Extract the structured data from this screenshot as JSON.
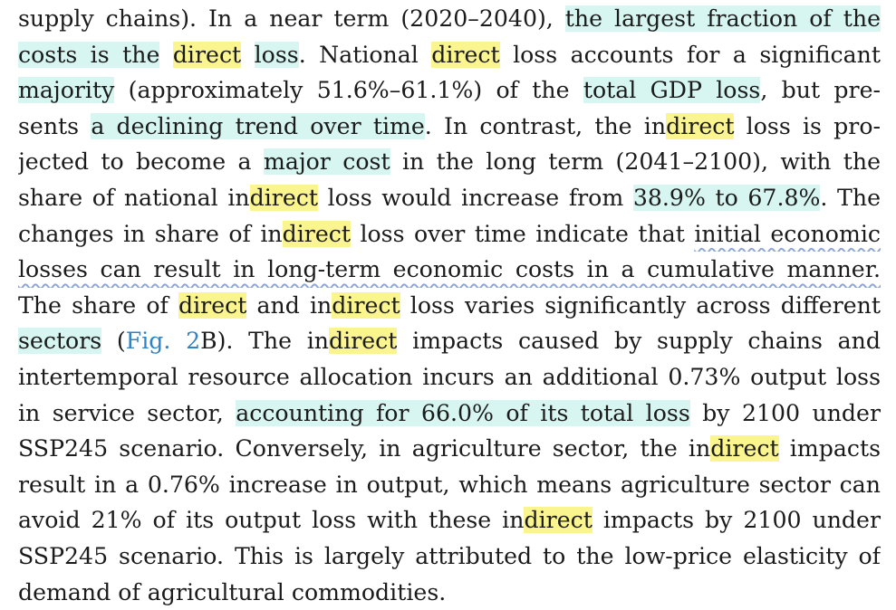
{
  "document": {
    "lines": [
      [
        {
          "t": "supply chains). In a near term (2020–2040), "
        },
        {
          "t": "the largest fraction of the",
          "hl": "cyan"
        }
      ],
      [
        {
          "t": "costs is the",
          "hl": "cyan"
        },
        {
          "t": " "
        },
        {
          "t": "direct",
          "hl": "yellow"
        },
        {
          "t": " "
        },
        {
          "t": "loss",
          "hl": "cyan"
        },
        {
          "t": ". National "
        },
        {
          "t": "direct",
          "hl": "yellow"
        },
        {
          "t": " loss accounts for a significant"
        }
      ],
      [
        {
          "t": "majority",
          "hl": "cyan"
        },
        {
          "t": " (approximately 51.6%–61.1%) of the "
        },
        {
          "t": "total GDP loss",
          "hl": "cyan"
        },
        {
          "t": ", but pre-"
        }
      ],
      [
        {
          "t": "sents "
        },
        {
          "t": "a declining trend over time",
          "hl": "cyan"
        },
        {
          "t": ". In contrast, the in"
        },
        {
          "t": "direct",
          "hl": "yellow"
        },
        {
          "t": " loss is pro-"
        }
      ],
      [
        {
          "t": "jected to become a "
        },
        {
          "t": "major cost",
          "hl": "cyan"
        },
        {
          "t": " in the long term (2041–2100), with the"
        }
      ],
      [
        {
          "t": "share of national in"
        },
        {
          "t": "direct",
          "hl": "yellow"
        },
        {
          "t": " loss would increase from "
        },
        {
          "t": "38.9% to 67.8%",
          "hl": "cyan"
        },
        {
          "t": ". The"
        }
      ],
      [
        {
          "t": "changes in share of in"
        },
        {
          "t": "direct",
          "hl": "yellow"
        },
        {
          "t": " loss over time indicate that "
        },
        {
          "t": "initial economic",
          "sq": true
        }
      ],
      [
        {
          "t": "losses can result in long-term economic costs in a cumulative manner.",
          "sq": true
        }
      ],
      [
        {
          "t": "The share of "
        },
        {
          "t": "direct",
          "hl": "yellow"
        },
        {
          "t": " and in"
        },
        {
          "t": "direct",
          "hl": "yellow"
        },
        {
          "t": " loss varies significantly across different"
        }
      ],
      [
        {
          "t": "sectors",
          "hl": "cyan"
        },
        {
          "t": " ("
        },
        {
          "t": "Fig. 2",
          "link": true
        },
        {
          "t": "B). The in"
        },
        {
          "t": "direct",
          "hl": "yellow"
        },
        {
          "t": " impacts caused by supply chains and"
        }
      ],
      [
        {
          "t": "intertemporal resource allocation incurs an additional 0.73% output loss"
        }
      ],
      [
        {
          "t": "in service sector, "
        },
        {
          "t": "accounting for 66.0% of its total loss",
          "hl": "cyan"
        },
        {
          "t": " by 2100 under"
        }
      ],
      [
        {
          "t": "SSP245 scenario. Conversely, in agriculture sector, the in"
        },
        {
          "t": "direct",
          "hl": "yellow"
        },
        {
          "t": " impacts"
        }
      ],
      [
        {
          "t": "result in a 0.76% increase in output, which means agriculture sector can"
        }
      ],
      [
        {
          "t": "avoid 21% of its output loss with these in"
        },
        {
          "t": "direct",
          "hl": "yellow"
        },
        {
          "t": " impacts by 2100 under"
        }
      ],
      [
        {
          "t": "SSP245 scenario. This is largely attributed to the low-price elasticity of"
        }
      ],
      [
        {
          "t": "demand of agricultural commodities."
        }
      ]
    ]
  },
  "colors": {
    "text": "#1b1b1b",
    "highlight_cyan": "#d7f6f1",
    "highlight_yellow": "#fbf58f",
    "squiggle_underline": "#8fa6d8",
    "link": "#2f83c5"
  }
}
